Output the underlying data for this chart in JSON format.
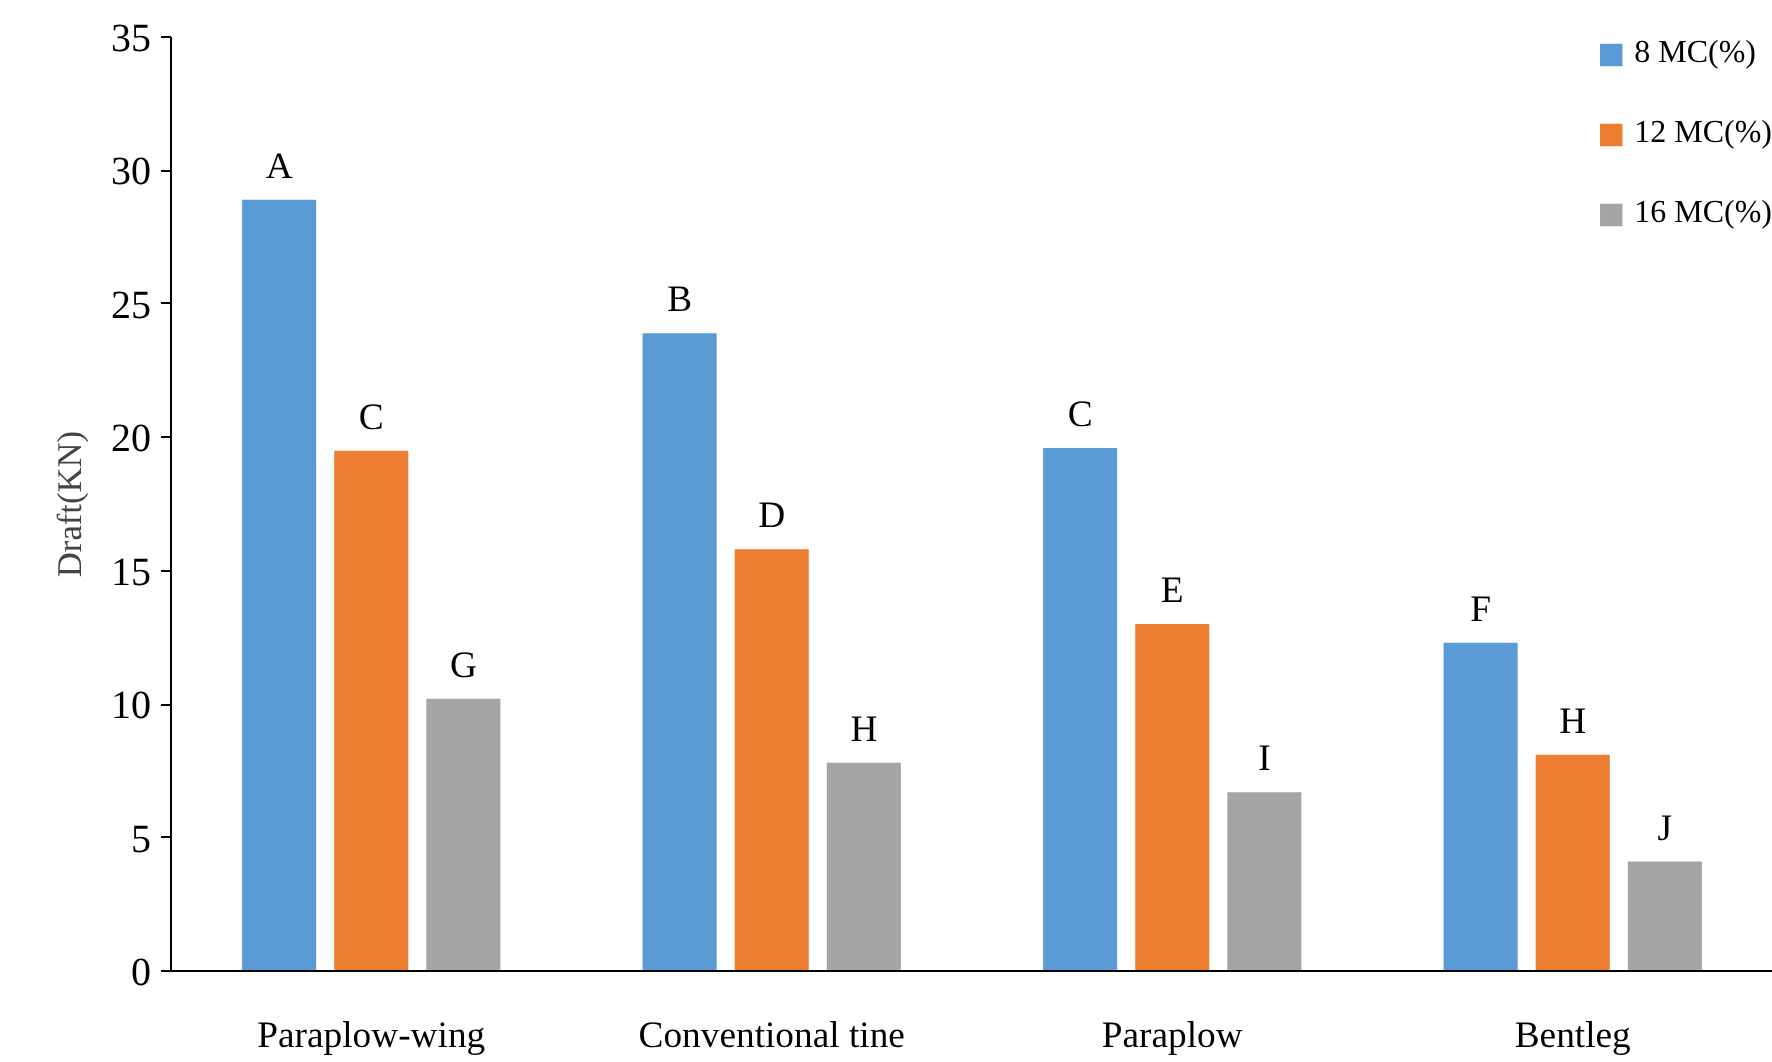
{
  "chart_data": {
    "type": "bar",
    "ylabel": "Draft(KN)",
    "categories": [
      "Paraplow-wing",
      "Conventional tine",
      "Paraplow",
      "Bentleg"
    ],
    "series": [
      {
        "name": "8 MC(%)",
        "color": "#5b9bd5",
        "values": [
          28.9,
          23.9,
          19.6,
          12.3
        ],
        "value_labels": [
          "A",
          "B",
          "C",
          "F"
        ]
      },
      {
        "name": "12 MC(%)",
        "color": "#ed7d31",
        "values": [
          19.5,
          15.8,
          13.0,
          8.1
        ],
        "value_labels": [
          "C",
          "D",
          "E",
          "H"
        ]
      },
      {
        "name": "16 MC(%)",
        "color": "#a5a5a5",
        "values": [
          10.2,
          7.8,
          6.7,
          4.1
        ],
        "value_labels": [
          "G",
          "H",
          "I",
          "J"
        ]
      }
    ],
    "ylim": [
      0,
      35
    ],
    "yticks": [
      0,
      5,
      10,
      15,
      20,
      25,
      30,
      35
    ],
    "grid": false,
    "legend": "top right"
  }
}
